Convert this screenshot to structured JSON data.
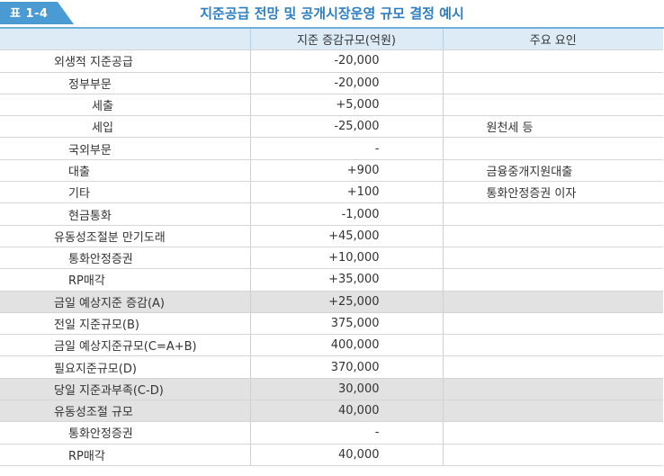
{
  "header": {
    "badge": "표 1-4",
    "title": "지준공급 전망 및 공개시장운영 규모 결정 예시"
  },
  "table": {
    "columns": [
      "",
      "지준 증감규모(억원)",
      "주요 요인"
    ],
    "rows": [
      {
        "label": "외생적 지준공급",
        "value": "-20,000",
        "note": "",
        "level": 1,
        "shaded": false
      },
      {
        "label": "정부부문",
        "value": "-20,000",
        "note": "",
        "level": 2,
        "shaded": false
      },
      {
        "label": "세출",
        "value": "+5,000",
        "note": "",
        "level": 3,
        "shaded": false
      },
      {
        "label": "세입",
        "value": "-25,000",
        "note": "원천세 등",
        "level": 3,
        "shaded": false
      },
      {
        "label": "국외부문",
        "value": "-",
        "note": "",
        "level": 2,
        "shaded": false
      },
      {
        "label": "대출",
        "value": "+900",
        "note": "금융중개지원대출",
        "level": 2,
        "shaded": false
      },
      {
        "label": "기타",
        "value": "+100",
        "note": "통화안정증권 이자",
        "level": 2,
        "shaded": false
      },
      {
        "label": "현금통화",
        "value": "-1,000",
        "note": "",
        "level": 2,
        "shaded": false
      },
      {
        "label": "유동성조절분 만기도래",
        "value": "+45,000",
        "note": "",
        "level": 1,
        "shaded": false
      },
      {
        "label": "통화안정증권",
        "value": "+10,000",
        "note": "",
        "level": 2,
        "shaded": false
      },
      {
        "label": "RP매각",
        "value": "+35,000",
        "note": "",
        "level": 2,
        "shaded": false
      },
      {
        "label": "금일 예상지준 증감(A)",
        "value": "+25,000",
        "note": "",
        "level": 1,
        "shaded": true
      },
      {
        "label": "전일 지준규모(B)",
        "value": "375,000",
        "note": "",
        "level": 1,
        "shaded": false
      },
      {
        "label": "금일 예상지준규모(C=A+B)",
        "value": "400,000",
        "note": "",
        "level": 1,
        "shaded": false
      },
      {
        "label": "필요지준규모(D)",
        "value": "370,000",
        "note": "",
        "level": 1,
        "shaded": false
      },
      {
        "label": "당일 지준과부족(C-D)",
        "value": "30,000",
        "note": "",
        "level": 1,
        "shaded": true
      },
      {
        "label": "유동성조절 규모",
        "value": "40,000",
        "note": "",
        "level": 1,
        "shaded": true
      },
      {
        "label": "통화안정증권",
        "value": "-",
        "note": "",
        "level": 2,
        "shaded": false
      },
      {
        "label": "RP매각",
        "value": "40,000",
        "note": "",
        "level": 2,
        "shaded": false
      }
    ]
  }
}
